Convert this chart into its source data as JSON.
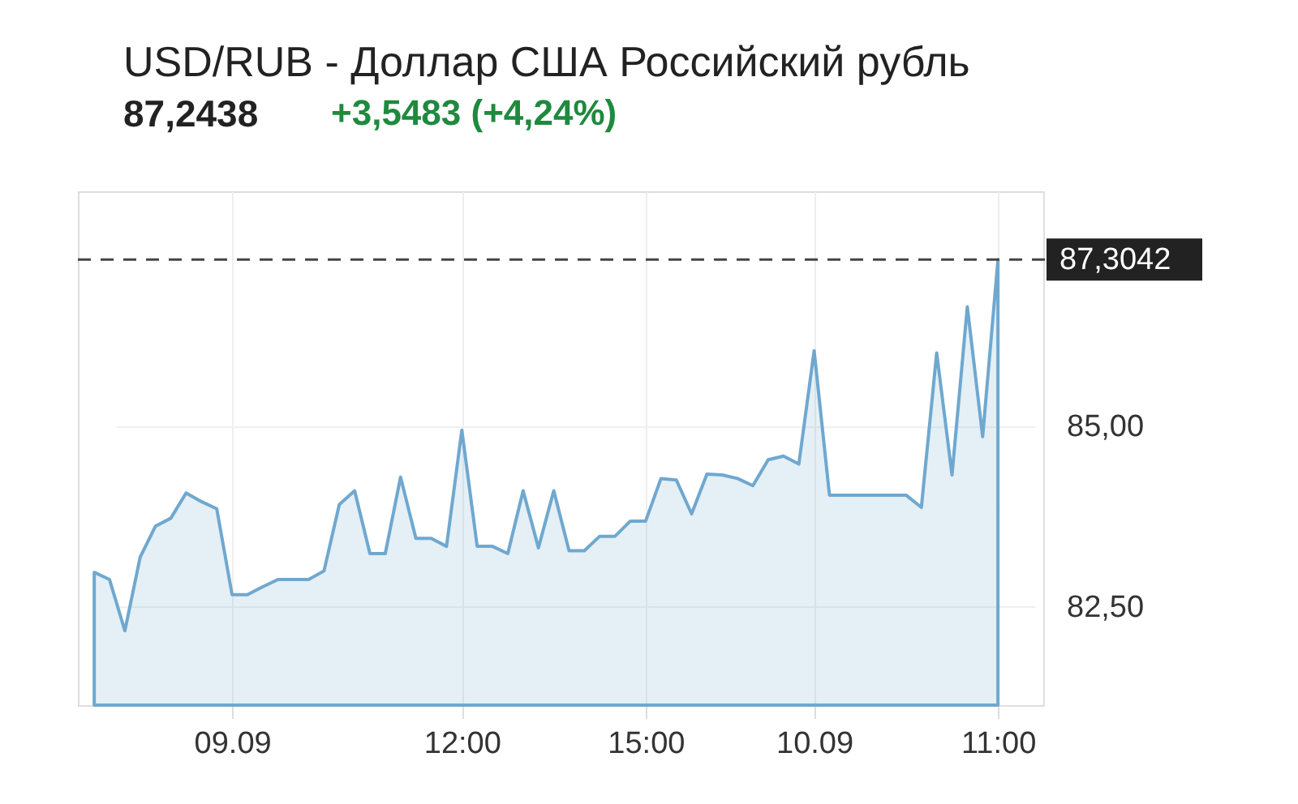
{
  "chart_data": {
    "type": "area",
    "title": "USD/RUB - Доллар США Российский рубль",
    "subtitle": "87,2438",
    "annotations": [
      "+3,5483 (+4,24%)"
    ],
    "categories": [
      null,
      null,
      null,
      null,
      null,
      null,
      null,
      null,
      null,
      "09.09",
      null,
      null,
      null,
      null,
      null,
      null,
      null,
      null,
      null,
      null,
      null,
      null,
      null,
      null,
      "12:00",
      null,
      null,
      null,
      null,
      null,
      null,
      null,
      null,
      null,
      null,
      null,
      "15:00",
      null,
      null,
      null,
      null,
      null,
      null,
      null,
      null,
      null,
      null,
      "10.09",
      null,
      null,
      null,
      null,
      null,
      null,
      null,
      null,
      null,
      null,
      null,
      "11:00"
    ],
    "series": [
      {
        "color": "#6fa8cf",
        "values": [
          82.97,
          82.87,
          82.16,
          83.18,
          83.61,
          83.72,
          84.07,
          83.95,
          83.85,
          82.66,
          82.66,
          82.77,
          82.87,
          82.87,
          82.87,
          82.99,
          83.91,
          84.1,
          83.23,
          83.23,
          84.29,
          83.44,
          83.44,
          83.33,
          84.94,
          83.33,
          83.33,
          83.23,
          84.1,
          83.31,
          84.1,
          83.27,
          83.27,
          83.47,
          83.47,
          83.68,
          83.68,
          84.27,
          84.25,
          83.78,
          84.33,
          84.32,
          84.27,
          84.17,
          84.53,
          84.58,
          84.47,
          86.04,
          84.04,
          84.04,
          84.04,
          84.04,
          84.04,
          84.04,
          83.87,
          86.01,
          84.32,
          86.65,
          84.85,
          87.3
        ]
      }
    ],
    "ylim": [
      81.13,
      88.25
    ],
    "yticks": [
      {
        "value": 82.5,
        "label": "82,50"
      },
      {
        "value": 85,
        "label": "85,00"
      }
    ],
    "ref_lines": [
      {
        "axis": "y",
        "value": 87.3042,
        "label": "87,3042",
        "color": "#444444",
        "line_style": "dashed"
      }
    ],
    "grid": true
  }
}
